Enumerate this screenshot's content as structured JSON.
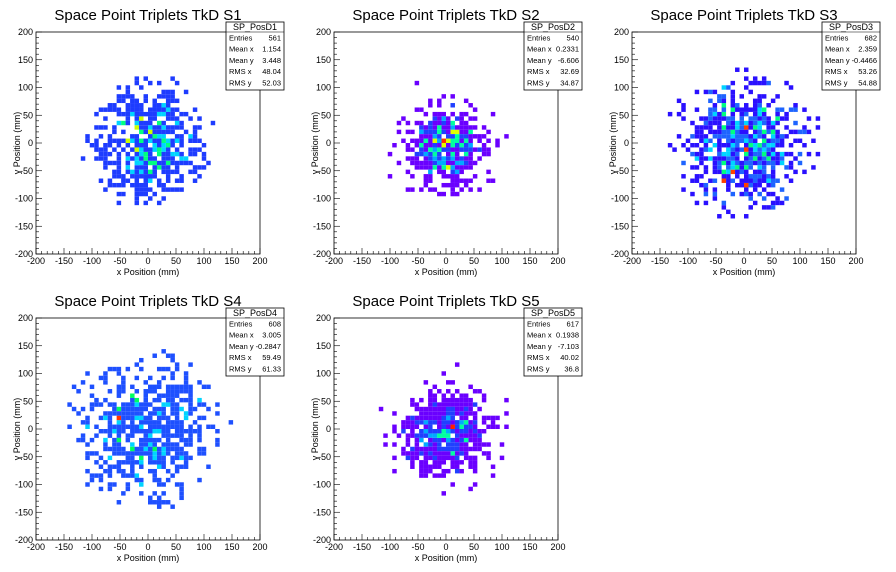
{
  "chart_data": [
    {
      "type": "heatmap",
      "title": "Space Point Triplets TkD S1",
      "xlabel": "x Position (mm)",
      "ylabel": "y Position (mm)",
      "xlim": [
        -200,
        200
      ],
      "ylim": [
        -200,
        200
      ],
      "xticks": [
        "-200",
        "-150",
        "-100",
        "-50",
        "0",
        "50",
        "100",
        "150",
        "200"
      ],
      "yticks": [
        "-200",
        "-150",
        "-100",
        "-50",
        "0",
        "50",
        "100",
        "150",
        "200"
      ],
      "stats": {
        "name": "SP_PosD1",
        "rows": [
          [
            "Entries",
            "561"
          ],
          [
            "Mean x",
            "1.154"
          ],
          [
            "Mean y",
            "3.448"
          ],
          [
            "RMS x",
            "48.04"
          ],
          [
            "RMS y",
            "52.03"
          ]
        ]
      },
      "distribution": {
        "entries": 561,
        "mean_x": 1.154,
        "mean_y": 3.448,
        "rms_x": 48.04,
        "rms_y": 52.03,
        "max_radius": 120
      },
      "colors": [
        "#1e3cff",
        "#00d4ff",
        "#00ff80",
        "#ccff00"
      ]
    },
    {
      "type": "heatmap",
      "title": "Space Point Triplets TkD S2",
      "xlabel": "x Position (mm)",
      "ylabel": "y Position (mm)",
      "xlim": [
        -200,
        200
      ],
      "ylim": [
        -200,
        200
      ],
      "xticks": [
        "-200",
        "-150",
        "-100",
        "-50",
        "0",
        "50",
        "100",
        "150",
        "200"
      ],
      "yticks": [
        "-200",
        "-150",
        "-100",
        "-50",
        "0",
        "50",
        "100",
        "150",
        "200"
      ],
      "stats": {
        "name": "SP_PosD2",
        "rows": [
          [
            "Entries",
            "540"
          ],
          [
            "Mean x",
            "0.2331"
          ],
          [
            "Mean y",
            "-6.606"
          ],
          [
            "RMS x",
            "32.69"
          ],
          [
            "RMS y",
            "34.87"
          ]
        ]
      },
      "distribution": {
        "entries": 540,
        "mean_x": 0.2331,
        "mean_y": -6.606,
        "rms_x": 32.69,
        "rms_y": 34.87,
        "max_radius": 130
      },
      "colors": [
        "#6a00ff",
        "#2040ff",
        "#00aaff",
        "#00ffa0",
        "#e0ff00",
        "#ff3000"
      ]
    },
    {
      "type": "heatmap",
      "title": "Space Point Triplets TkD S3",
      "xlabel": "x Position (mm)",
      "ylabel": "y Position (mm)",
      "xlim": [
        -200,
        200
      ],
      "ylim": [
        -200,
        200
      ],
      "xticks": [
        "-200",
        "-150",
        "-100",
        "-50",
        "0",
        "50",
        "100",
        "150",
        "200"
      ],
      "yticks": [
        "-200",
        "-150",
        "-100",
        "-50",
        "0",
        "50",
        "100",
        "150",
        "200"
      ],
      "stats": {
        "name": "SP_PosD3",
        "rows": [
          [
            "Entries",
            "682"
          ],
          [
            "Mean x",
            "2.359"
          ],
          [
            "Mean y",
            "-0.4466"
          ],
          [
            "RMS x",
            "53.26"
          ],
          [
            "RMS y",
            "54.88"
          ]
        ]
      },
      "distribution": {
        "entries": 682,
        "mean_x": 2.359,
        "mean_y": -0.4466,
        "rms_x": 53.26,
        "rms_y": 54.88,
        "max_radius": 140
      },
      "colors": [
        "#2a10ff",
        "#1e64ff",
        "#00d4ff",
        "#00ff80",
        "#ff4000"
      ]
    },
    {
      "type": "heatmap",
      "title": "Space Point Triplets TkD S4",
      "xlabel": "x Position (mm)",
      "ylabel": "y Position (mm)",
      "xlim": [
        -200,
        200
      ],
      "ylim": [
        -200,
        200
      ],
      "xticks": [
        "-200",
        "-150",
        "-100",
        "-50",
        "0",
        "50",
        "100",
        "150",
        "200"
      ],
      "yticks": [
        "-200",
        "-150",
        "-100",
        "-50",
        "0",
        "50",
        "100",
        "150",
        "200"
      ],
      "stats": {
        "name": "SP_PosD4",
        "rows": [
          [
            "Entries",
            "608"
          ],
          [
            "Mean x",
            "3.005"
          ],
          [
            "Mean y",
            "-0.2847"
          ],
          [
            "RMS x",
            "59.49"
          ],
          [
            "RMS y",
            "61.33"
          ]
        ]
      },
      "distribution": {
        "entries": 608,
        "mean_x": 3.005,
        "mean_y": -0.2847,
        "rms_x": 59.49,
        "rms_y": 61.33,
        "max_radius": 150
      },
      "colors": [
        "#1e50ff",
        "#00d4ff",
        "#00ff60",
        "#e0ff00",
        "#ff3000"
      ]
    },
    {
      "type": "heatmap",
      "title": "Space Point Triplets TkD S5",
      "xlabel": "x Position (mm)",
      "ylabel": "y Position (mm)",
      "xlim": [
        -200,
        200
      ],
      "ylim": [
        -200,
        200
      ],
      "xticks": [
        "-200",
        "-150",
        "-100",
        "-50",
        "0",
        "50",
        "100",
        "150",
        "200"
      ],
      "yticks": [
        "-200",
        "-150",
        "-100",
        "-50",
        "0",
        "50",
        "100",
        "150",
        "200"
      ],
      "stats": {
        "name": "SP_PosD5",
        "rows": [
          [
            "Entries",
            "617"
          ],
          [
            "Mean x",
            "0.1938"
          ],
          [
            "Mean y",
            "-7.103"
          ],
          [
            "RMS x",
            "40.02"
          ],
          [
            "RMS y",
            "36.8"
          ]
        ]
      },
      "distribution": {
        "entries": 617,
        "mean_x": 0.1938,
        "mean_y": -7.103,
        "rms_x": 40.02,
        "rms_y": 36.8,
        "max_radius": 130
      },
      "colors": [
        "#6a00ff",
        "#2040ff",
        "#00aaff",
        "#00ffa0",
        "#e0ff00",
        "#ff2000"
      ]
    }
  ]
}
